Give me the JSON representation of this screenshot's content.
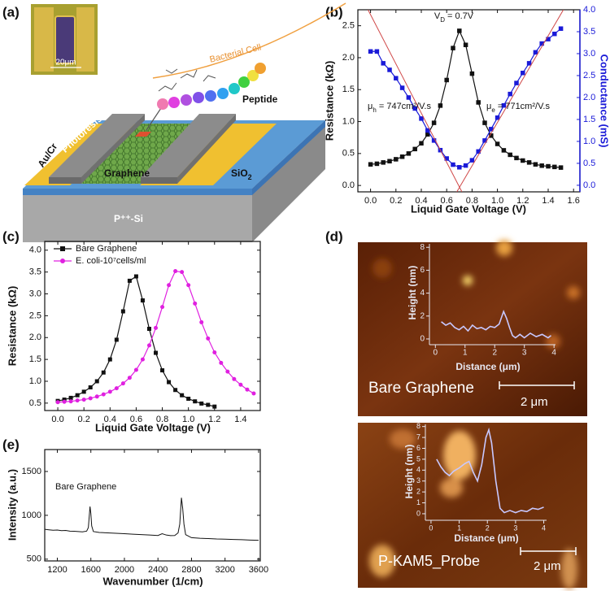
{
  "panel_labels": [
    "(a)",
    "(b)",
    "(c)",
    "(d)",
    "(e)"
  ],
  "diagram": {
    "scale": "20μm",
    "cell": "Bacterial Cell",
    "peptide": "Peptide",
    "electrode": "Au/Cr",
    "resist": "Photoresist",
    "graphene": "Graphene",
    "oxide": {
      "text": "SiO",
      "sub": "2"
    },
    "substrate": "P⁺⁺-Si"
  },
  "afm": [
    {
      "label": "Bare Graphene",
      "scale": "2 μm"
    },
    {
      "label": "P-KAM5_Probe",
      "scale": "2 μm"
    }
  ],
  "chart_data": [
    {
      "type": "line",
      "xlabel": "Liquid Gate Voltage (V)",
      "ylabel": "Resistance (kΩ)",
      "y2label": "Conductance (mS)",
      "y2color": "#1a1ad8",
      "xlim": [
        -0.1,
        1.65
      ],
      "xticks": [
        {
          "value": 0,
          "label": "0.0"
        },
        0.2,
        0.4,
        0.6,
        0.8,
        {
          "value": 1,
          "label": "1.0"
        },
        1.2,
        1.4,
        1.6
      ],
      "ylim": [
        -0.1,
        2.75
      ],
      "yticks": [
        {
          "value": 0,
          "label": "0.0"
        },
        0.5,
        {
          "value": 1,
          "label": "1.0"
        },
        1.5,
        {
          "value": 2,
          "label": "2.0"
        },
        2.5
      ],
      "y2lim": [
        -0.15,
        4.0
      ],
      "y2ticks": [
        {
          "value": 0,
          "label": "0.0"
        },
        0.5,
        {
          "value": 1,
          "label": "1.0"
        },
        1.5,
        {
          "value": 2,
          "label": "2.0"
        },
        2.5,
        {
          "value": 3,
          "label": "3.0"
        },
        3.5,
        {
          "value": 4,
          "label": "4.0"
        }
      ],
      "series": [
        {
          "color": "#111111",
          "marker": "square",
          "x": [
            0,
            0.05,
            0.1,
            0.15,
            0.2,
            0.25,
            0.3,
            0.35,
            0.4,
            0.45,
            0.5,
            0.55,
            0.6,
            0.65,
            0.7,
            0.75,
            0.8,
            0.85,
            0.9,
            0.95,
            1,
            1.05,
            1.1,
            1.15,
            1.2,
            1.25,
            1.3,
            1.35,
            1.4,
            1.45,
            1.5
          ],
          "values": [
            0.33,
            0.34,
            0.36,
            0.38,
            0.41,
            0.45,
            0.5,
            0.57,
            0.66,
            0.8,
            0.98,
            1.25,
            1.65,
            2.15,
            2.42,
            2.2,
            1.75,
            1.3,
            0.98,
            0.78,
            0.65,
            0.55,
            0.48,
            0.43,
            0.39,
            0.36,
            0.33,
            0.31,
            0.3,
            0.29,
            0.28
          ]
        },
        {
          "color": "#1a1ad8",
          "marker": "square",
          "axis": "y2",
          "x": [
            0,
            0.05,
            0.1,
            0.15,
            0.2,
            0.25,
            0.3,
            0.35,
            0.4,
            0.45,
            0.5,
            0.55,
            0.6,
            0.65,
            0.7,
            0.75,
            0.8,
            0.85,
            0.9,
            0.95,
            1,
            1.05,
            1.1,
            1.15,
            1.2,
            1.25,
            1.3,
            1.35,
            1.4,
            1.45,
            1.5
          ],
          "values": [
            3.05,
            3.05,
            2.78,
            2.63,
            2.44,
            2.22,
            2.0,
            1.75,
            1.52,
            1.25,
            1.02,
            0.8,
            0.61,
            0.47,
            0.41,
            0.45,
            0.57,
            0.77,
            1.02,
            1.28,
            1.54,
            1.82,
            2.08,
            2.33,
            2.56,
            2.78,
            3.03,
            3.23,
            3.33,
            3.45,
            3.57
          ]
        },
        {
          "color": "#d04848",
          "axis": "y2",
          "x": [
            -0.02,
            0.72
          ],
          "values": [
            4.0,
            -0.15
          ]
        },
        {
          "color": "#d04848",
          "axis": "y2",
          "x": [
            0.68,
            1.52
          ],
          "values": [
            -0.15,
            4.0
          ]
        }
      ],
      "annotations": [
        {
          "text": "V",
          "sub": "D",
          "rest": " = 0.7V"
        },
        {
          "text": "μ",
          "sub": "h",
          "rest": " = 747cm²/V.s"
        },
        {
          "text": "μ",
          "sub": "e",
          "rest": " = 771cm²/V.s"
        }
      ]
    },
    {
      "type": "line",
      "xlabel": "Liquid Gate Voltage (V)",
      "ylabel": "Resistance (kΩ)",
      "legend": "upper left",
      "xlim": [
        -0.1,
        1.55
      ],
      "xticks": [
        {
          "value": 0,
          "label": "0.0"
        },
        0.2,
        0.4,
        0.6,
        0.8,
        {
          "value": 1,
          "label": "1.0"
        },
        1.2,
        1.4
      ],
      "ylim": [
        0.33,
        4.2
      ],
      "yticks": [
        0.5,
        {
          "value": 1,
          "label": "1.0"
        },
        1.5,
        {
          "value": 2,
          "label": "2.0"
        },
        2.5,
        {
          "value": 3,
          "label": "3.0"
        },
        3.5,
        {
          "value": 4,
          "label": "4.0"
        }
      ],
      "series": [
        {
          "name": "Bare Graphene",
          "color": "#111111",
          "marker": "square",
          "x": [
            0,
            0.05,
            0.1,
            0.15,
            0.2,
            0.25,
            0.3,
            0.35,
            0.4,
            0.45,
            0.5,
            0.55,
            0.6,
            0.65,
            0.7,
            0.75,
            0.8,
            0.85,
            0.9,
            0.95,
            1,
            1.05,
            1.1,
            1.15,
            1.2
          ],
          "values": [
            0.55,
            0.58,
            0.62,
            0.68,
            0.76,
            0.86,
            1.0,
            1.2,
            1.5,
            1.95,
            2.6,
            3.3,
            3.4,
            2.85,
            2.2,
            1.65,
            1.25,
            0.98,
            0.8,
            0.68,
            0.6,
            0.54,
            0.49,
            0.46,
            0.42
          ]
        },
        {
          "name": "E. coli-10⁷cells/ml",
          "color": "#e020e0",
          "marker": "circle",
          "x": [
            0,
            0.05,
            0.1,
            0.15,
            0.2,
            0.25,
            0.3,
            0.35,
            0.4,
            0.45,
            0.5,
            0.55,
            0.6,
            0.65,
            0.7,
            0.75,
            0.8,
            0.85,
            0.9,
            0.95,
            1,
            1.05,
            1.1,
            1.15,
            1.2,
            1.25,
            1.3,
            1.35,
            1.4,
            1.45,
            1.5
          ],
          "values": [
            0.52,
            0.53,
            0.54,
            0.56,
            0.58,
            0.61,
            0.65,
            0.7,
            0.76,
            0.84,
            0.95,
            1.08,
            1.26,
            1.5,
            1.82,
            2.22,
            2.7,
            3.2,
            3.52,
            3.5,
            3.2,
            2.78,
            2.35,
            1.98,
            1.66,
            1.42,
            1.22,
            1.05,
            0.92,
            0.81,
            0.72
          ]
        }
      ]
    },
    {
      "type": "line",
      "xlabel": "Wavenumber (1/cm)",
      "ylabel": "Intensity (a.u.)",
      "xlim": [
        1050,
        3620
      ],
      "xticks": [
        1200,
        1600,
        2000,
        2400,
        2800,
        3200,
        3600
      ],
      "ylim": [
        480,
        1750
      ],
      "yticks": [
        500,
        1000,
        1500
      ],
      "annotations": [
        {
          "text": "Bare Graphene"
        }
      ],
      "series": [
        {
          "color": "#111111",
          "x": [
            1050,
            1100,
            1150,
            1200,
            1250,
            1300,
            1350,
            1400,
            1450,
            1500,
            1550,
            1570,
            1580,
            1590,
            1600,
            1610,
            1630,
            1700,
            1800,
            1900,
            2000,
            2100,
            2200,
            2300,
            2400,
            2450,
            2500,
            2550,
            2600,
            2640,
            2660,
            2680,
            2695,
            2710,
            2730,
            2800,
            2900,
            3000,
            3100,
            3200,
            3300,
            3400,
            3500,
            3600
          ],
          "values": [
            840,
            835,
            830,
            832,
            825,
            828,
            820,
            818,
            815,
            812,
            820,
            860,
            980,
            1100,
            1020,
            880,
            815,
            805,
            800,
            795,
            790,
            785,
            780,
            775,
            770,
            790,
            775,
            768,
            770,
            800,
            900,
            1200,
            1080,
            900,
            780,
            745,
            738,
            735,
            730,
            728,
            725,
            722,
            718,
            715
          ]
        }
      ]
    },
    {
      "type": "line",
      "xlabel": "Distance (μm)",
      "ylabel": "Height (nm)",
      "xlim": [
        -0.2,
        4.05
      ],
      "xticks": [
        0,
        1,
        2,
        3,
        4
      ],
      "ylim": [
        -0.5,
        8.3
      ],
      "yticks": [
        0,
        2,
        4,
        6,
        8
      ],
      "series": [
        {
          "color": "#c8c8ff",
          "x": [
            0.2,
            0.35,
            0.5,
            0.65,
            0.8,
            0.95,
            1.1,
            1.25,
            1.4,
            1.55,
            1.7,
            1.85,
            2.0,
            2.15,
            2.3,
            2.4,
            2.5,
            2.6,
            2.7,
            2.85,
            3.0,
            3.2,
            3.4,
            3.6,
            3.8,
            3.9
          ],
          "values": [
            1.5,
            1.2,
            1.4,
            1.0,
            0.8,
            1.1,
            0.7,
            1.2,
            0.9,
            1.0,
            0.8,
            1.1,
            1.0,
            1.3,
            2.4,
            1.8,
            1.0,
            0.3,
            0.1,
            0.4,
            0.1,
            0.5,
            0.2,
            0.4,
            0.1,
            0.3
          ]
        }
      ]
    },
    {
      "type": "line",
      "xlabel": "Distance (μm)",
      "ylabel": "Height (nm)",
      "xlim": [
        -0.2,
        4.1
      ],
      "xticks": [
        0,
        1,
        2,
        3,
        4
      ],
      "ylim": [
        -0.6,
        8.2
      ],
      "yticks": [
        0,
        1,
        2,
        3,
        4,
        5,
        6,
        7,
        8
      ],
      "series": [
        {
          "color": "#c8c8ff",
          "x": [
            0.2,
            0.35,
            0.5,
            0.65,
            0.8,
            1.0,
            1.2,
            1.35,
            1.5,
            1.65,
            1.8,
            1.95,
            2.05,
            2.15,
            2.3,
            2.45,
            2.6,
            2.8,
            3.0,
            3.2,
            3.4,
            3.6,
            3.8,
            4.0
          ],
          "values": [
            5.0,
            4.3,
            3.8,
            3.5,
            3.9,
            4.2,
            4.6,
            4.8,
            3.8,
            3.0,
            4.5,
            7.0,
            7.7,
            6.5,
            3.0,
            0.5,
            0.1,
            0.3,
            0.1,
            0.3,
            0.2,
            0.5,
            0.4,
            0.6
          ]
        }
      ]
    }
  ]
}
